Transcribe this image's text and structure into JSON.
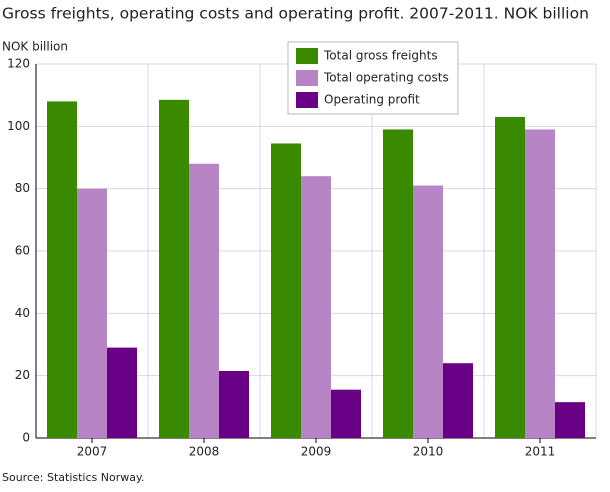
{
  "chart_data": {
    "type": "bar",
    "title": "Gross freights, operating costs and operating profit. 2007-2011. NOK billion",
    "y_label": "NOK billion",
    "source": "Source: Statistics Norway.",
    "categories": [
      "2007",
      "2008",
      "2009",
      "2010",
      "2011"
    ],
    "series": [
      {
        "name": "Total gross freights",
        "color": "#3a8a00",
        "values": [
          108,
          108.5,
          94.5,
          99,
          103
        ]
      },
      {
        "name": "Total operating costs",
        "color": "#b784c6",
        "values": [
          80,
          88,
          84,
          81,
          99
        ]
      },
      {
        "name": "Operating profit",
        "color": "#6a0086",
        "values": [
          29,
          21.5,
          15.5,
          24,
          11.5
        ]
      }
    ],
    "ylim": [
      0,
      120
    ],
    "yticks": [
      0,
      20,
      40,
      60,
      80,
      100,
      120
    ],
    "grid": true,
    "legend": "top-center"
  }
}
